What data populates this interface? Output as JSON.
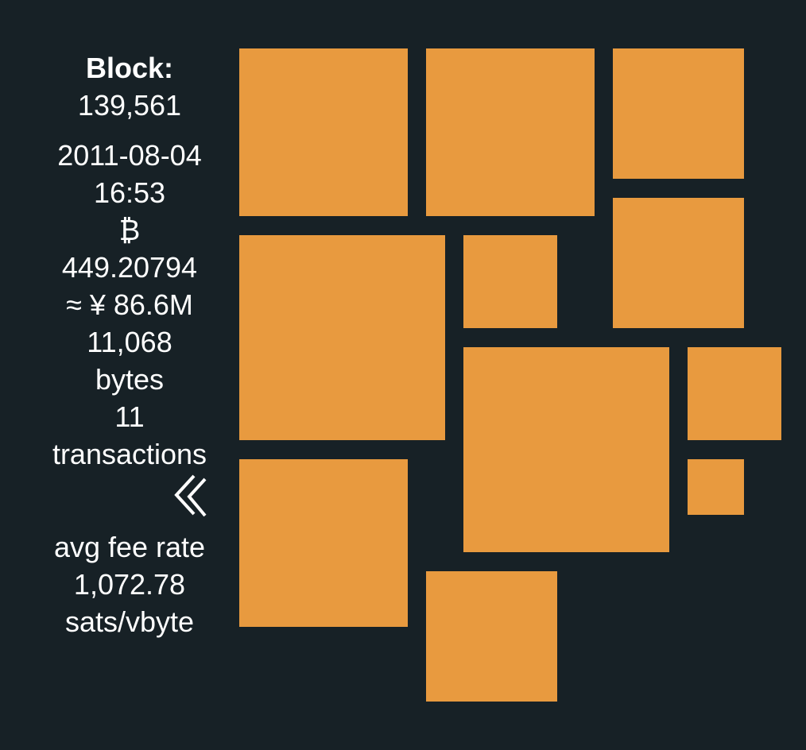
{
  "block": {
    "label": "Block:",
    "height": "139,561",
    "date": "2011-08-04",
    "time": "16:53",
    "currency_symbol": "₿",
    "total_btc": "449.20794",
    "fiat_value": "≈ ¥ 86.6M",
    "size_value": "11,068",
    "size_unit": "bytes",
    "tx_count": "11",
    "tx_unit": "transactions",
    "avg_fee_label": "avg fee rate",
    "avg_fee_value": "1,072.78",
    "avg_fee_unit": "sats/vbyte"
  },
  "navigation": {
    "back_icon": "chevron-double-left-icon"
  },
  "colors": {
    "background": "#172126",
    "transaction_block": "#e89a3f",
    "text": "#ffffff"
  }
}
